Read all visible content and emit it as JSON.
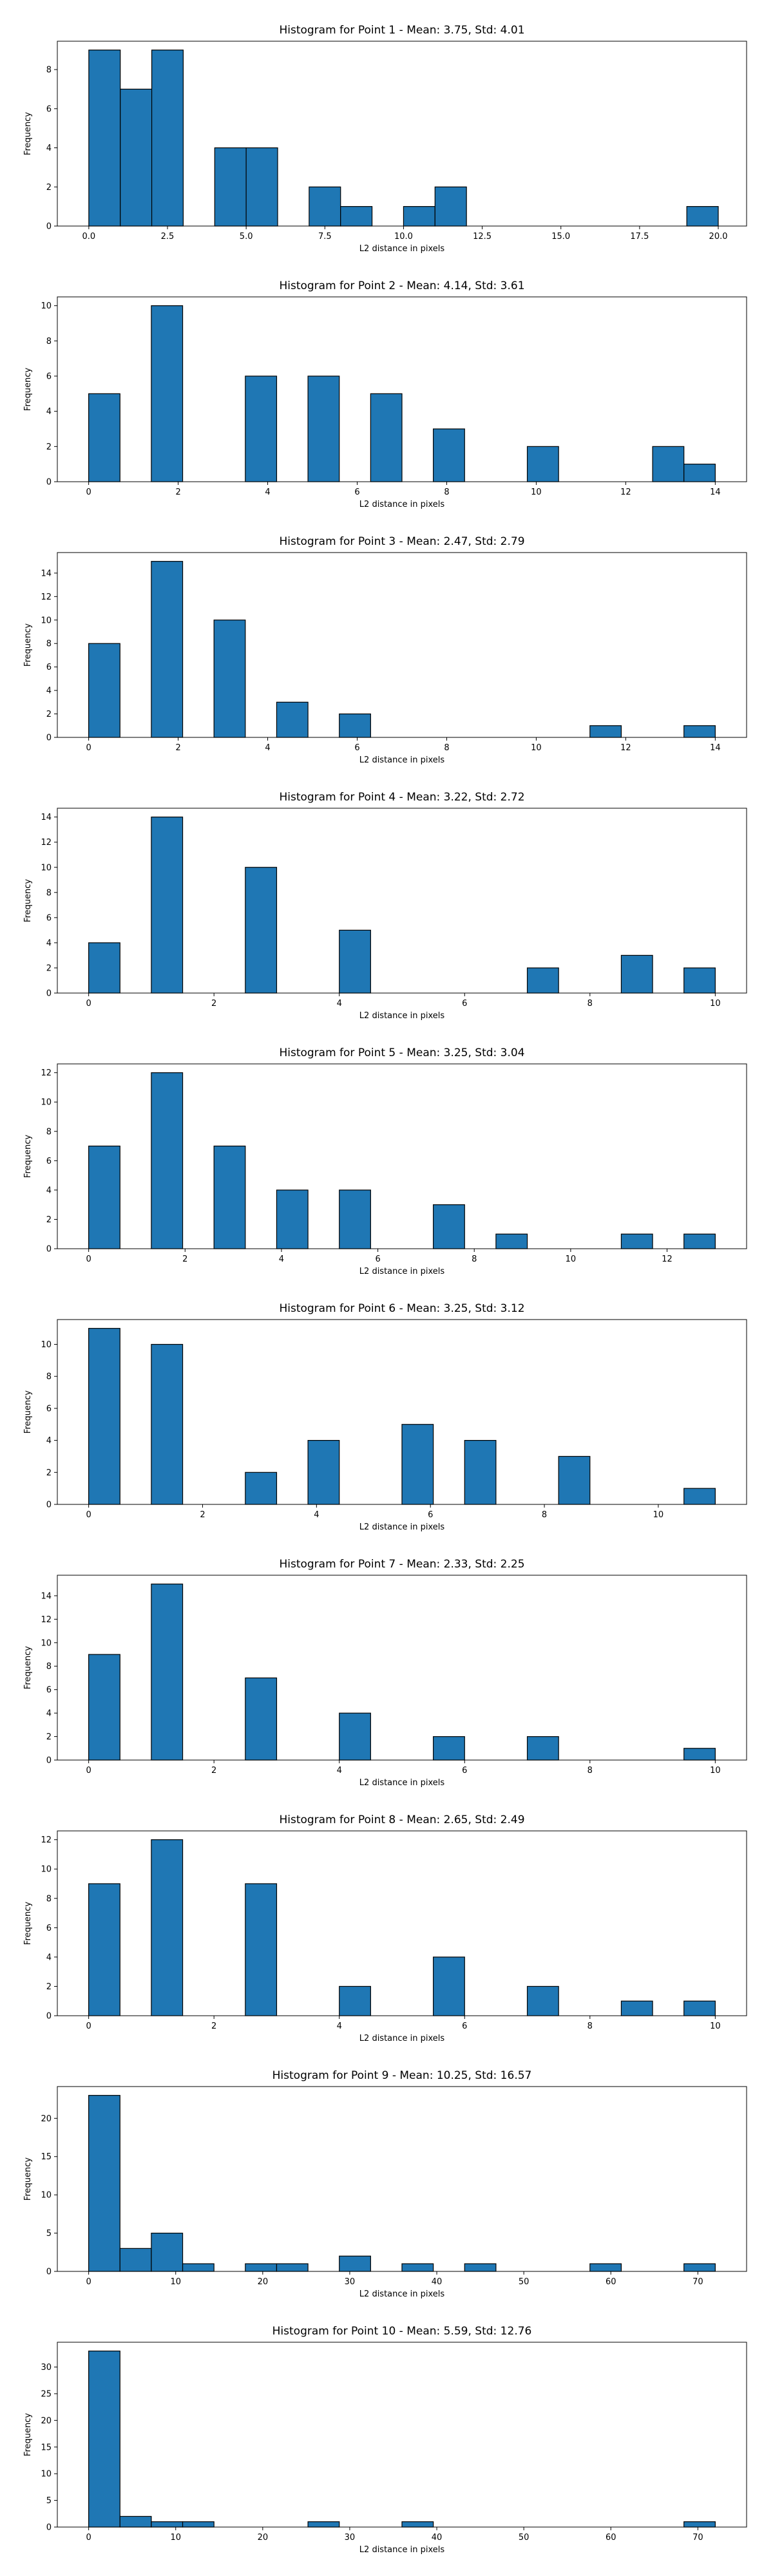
{
  "bar_color": "#1f77b4",
  "edge_color": "#000000",
  "chart_data": [
    {
      "type": "bar",
      "title": "Histogram for Point 1 - Mean: 3.75, Std: 4.01",
      "xlabel": "L2 distance in pixels",
      "ylabel": "Frequency",
      "xlim": [
        -1.0,
        20.9
      ],
      "ylim": [
        0,
        9.45
      ],
      "xticks": [
        0.0,
        2.5,
        5.0,
        7.5,
        10.0,
        12.5,
        15.0,
        17.5,
        20.0
      ],
      "xtick_labels": [
        "0.0",
        "2.5",
        "5.0",
        "7.5",
        "10.0",
        "12.5",
        "15.0",
        "17.5",
        "20.0"
      ],
      "yticks": [
        0,
        2,
        4,
        6,
        8
      ],
      "bin_start": 0,
      "bin_width": 1,
      "counts": [
        9,
        7,
        9,
        0,
        4,
        4,
        0,
        2,
        1,
        0,
        1,
        2,
        0,
        0,
        0,
        0,
        0,
        0,
        0,
        1
      ]
    },
    {
      "type": "bar",
      "title": "Histogram for Point 2 - Mean: 4.14, Std: 3.61",
      "xlabel": "L2 distance in pixels",
      "ylabel": "Frequency",
      "xlim": [
        -0.7,
        14.7
      ],
      "ylim": [
        0,
        10.5
      ],
      "xticks": [
        0,
        2,
        4,
        6,
        8,
        10,
        12,
        14
      ],
      "xtick_labels": [
        "0",
        "2",
        "4",
        "6",
        "8",
        "10",
        "12",
        "14"
      ],
      "yticks": [
        0,
        2,
        4,
        6,
        8,
        10
      ],
      "bin_start": 0,
      "bin_width": 0.7,
      "counts": [
        5,
        0,
        10,
        0,
        0,
        6,
        0,
        6,
        0,
        5,
        0,
        3,
        0,
        0,
        2,
        0,
        0,
        0,
        2,
        1
      ]
    },
    {
      "type": "bar",
      "title": "Histogram for Point 3 - Mean: 2.47, Std: 2.79",
      "xlabel": "L2 distance in pixels",
      "ylabel": "Frequency",
      "xlim": [
        -0.7,
        14.7
      ],
      "ylim": [
        0,
        15.75
      ],
      "xticks": [
        0,
        2,
        4,
        6,
        8,
        10,
        12,
        14
      ],
      "xtick_labels": [
        "0",
        "2",
        "4",
        "6",
        "8",
        "10",
        "12",
        "14"
      ],
      "yticks": [
        0,
        2,
        4,
        6,
        8,
        10,
        12,
        14
      ],
      "bin_start": 0,
      "bin_width": 0.7,
      "counts": [
        8,
        0,
        15,
        0,
        10,
        0,
        3,
        0,
        2,
        0,
        0,
        0,
        0,
        0,
        0,
        0,
        1,
        0,
        0,
        1
      ]
    },
    {
      "type": "bar",
      "title": "Histogram for Point 4 - Mean: 3.22, Std: 2.72",
      "xlabel": "L2 distance in pixels",
      "ylabel": "Frequency",
      "xlim": [
        -0.5,
        10.5
      ],
      "ylim": [
        0,
        14.7
      ],
      "xticks": [
        0,
        2,
        4,
        6,
        8,
        10
      ],
      "xtick_labels": [
        "0",
        "2",
        "4",
        "6",
        "8",
        "10"
      ],
      "yticks": [
        0,
        2,
        4,
        6,
        8,
        10,
        12,
        14
      ],
      "bin_start": 0,
      "bin_width": 0.5,
      "counts": [
        4,
        0,
        14,
        0,
        0,
        10,
        0,
        0,
        5,
        0,
        0,
        0,
        0,
        0,
        2,
        0,
        0,
        3,
        0,
        2
      ]
    },
    {
      "type": "bar",
      "title": "Histogram for Point 5 - Mean: 3.25, Std: 3.04",
      "xlabel": "L2 distance in pixels",
      "ylabel": "Frequency",
      "xlim": [
        -0.65,
        13.65
      ],
      "ylim": [
        0,
        12.6
      ],
      "xticks": [
        0,
        2,
        4,
        6,
        8,
        10,
        12
      ],
      "xtick_labels": [
        "0",
        "2",
        "4",
        "6",
        "8",
        "10",
        "12"
      ],
      "yticks": [
        0,
        2,
        4,
        6,
        8,
        10,
        12
      ],
      "bin_start": 0,
      "bin_width": 0.65,
      "counts": [
        7,
        0,
        12,
        0,
        7,
        0,
        4,
        0,
        4,
        0,
        0,
        3,
        0,
        1,
        0,
        0,
        0,
        1,
        0,
        1
      ]
    },
    {
      "type": "bar",
      "title": "Histogram for Point 6 - Mean: 3.25, Std: 3.12",
      "xlabel": "L2 distance in pixels",
      "ylabel": "Frequency",
      "xlim": [
        -0.55,
        11.55
      ],
      "ylim": [
        0,
        11.55
      ],
      "xticks": [
        0,
        2,
        4,
        6,
        8,
        10
      ],
      "xtick_labels": [
        "0",
        "2",
        "4",
        "6",
        "8",
        "10"
      ],
      "yticks": [
        0,
        2,
        4,
        6,
        8,
        10
      ],
      "bin_start": 0,
      "bin_width": 0.55,
      "counts": [
        11,
        0,
        10,
        0,
        0,
        2,
        0,
        4,
        0,
        0,
        5,
        0,
        4,
        0,
        0,
        3,
        0,
        0,
        0,
        1
      ]
    },
    {
      "type": "bar",
      "title": "Histogram for Point 7 - Mean: 2.33, Std: 2.25",
      "xlabel": "L2 distance in pixels",
      "ylabel": "Frequency",
      "xlim": [
        -0.5,
        10.5
      ],
      "ylim": [
        0,
        15.75
      ],
      "xticks": [
        0,
        2,
        4,
        6,
        8,
        10
      ],
      "xtick_labels": [
        "0",
        "2",
        "4",
        "6",
        "8",
        "10"
      ],
      "yticks": [
        0,
        2,
        4,
        6,
        8,
        10,
        12,
        14
      ],
      "bin_start": 0,
      "bin_width": 0.5,
      "counts": [
        9,
        0,
        15,
        0,
        0,
        7,
        0,
        0,
        4,
        0,
        0,
        2,
        0,
        0,
        2,
        0,
        0,
        0,
        0,
        1
      ]
    },
    {
      "type": "bar",
      "title": "Histogram for Point 8 - Mean: 2.65, Std: 2.49",
      "xlabel": "L2 distance in pixels",
      "ylabel": "Frequency",
      "xlim": [
        -0.5,
        10.5
      ],
      "ylim": [
        0,
        12.6
      ],
      "xticks": [
        0,
        2,
        4,
        6,
        8,
        10
      ],
      "xtick_labels": [
        "0",
        "2",
        "4",
        "6",
        "8",
        "10"
      ],
      "yticks": [
        0,
        2,
        4,
        6,
        8,
        10,
        12
      ],
      "bin_start": 0,
      "bin_width": 0.5,
      "counts": [
        9,
        0,
        12,
        0,
        0,
        9,
        0,
        0,
        2,
        0,
        0,
        4,
        0,
        0,
        2,
        0,
        0,
        1,
        0,
        1
      ]
    },
    {
      "type": "bar",
      "title": "Histogram for Point 9 - Mean: 10.25, Std: 16.57",
      "xlabel": "L2 distance in pixels",
      "ylabel": "Frequency",
      "xlim": [
        -3.6,
        75.6
      ],
      "ylim": [
        0,
        24.15
      ],
      "xticks": [
        0,
        10,
        20,
        30,
        40,
        50,
        60,
        70
      ],
      "xtick_labels": [
        "0",
        "10",
        "20",
        "30",
        "40",
        "50",
        "60",
        "70"
      ],
      "yticks": [
        0,
        5,
        10,
        15,
        20
      ],
      "bin_start": 0,
      "bin_width": 3.6,
      "counts": [
        23,
        3,
        5,
        1,
        0,
        1,
        1,
        0,
        2,
        0,
        1,
        0,
        1,
        0,
        0,
        0,
        1,
        0,
        0,
        1
      ]
    },
    {
      "type": "bar",
      "title": "Histogram for Point 10 - Mean: 5.59, Std: 12.76",
      "xlabel": "L2 distance in pixels",
      "ylabel": "Frequency",
      "xlim": [
        -3.6,
        75.6
      ],
      "ylim": [
        0,
        34.65
      ],
      "xticks": [
        0,
        10,
        20,
        30,
        40,
        50,
        60,
        70
      ],
      "xtick_labels": [
        "0",
        "10",
        "20",
        "30",
        "40",
        "50",
        "60",
        "70"
      ],
      "yticks": [
        0,
        5,
        10,
        15,
        20,
        25,
        30
      ],
      "bin_start": 0,
      "bin_width": 3.6,
      "counts": [
        33,
        2,
        1,
        1,
        0,
        0,
        0,
        1,
        0,
        0,
        1,
        0,
        0,
        0,
        0,
        0,
        0,
        0,
        0,
        1
      ]
    }
  ]
}
